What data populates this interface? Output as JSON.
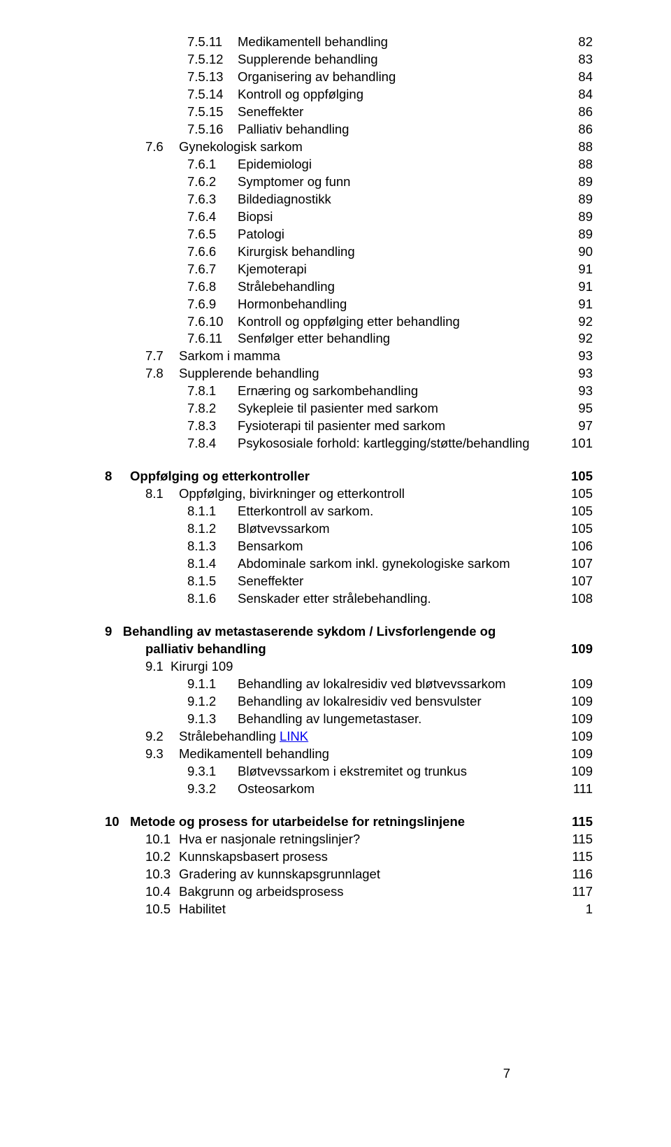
{
  "lines": [
    {
      "indent": "ind2",
      "bold": false,
      "num": "7.5.11",
      "text": "Medikamentell behandling",
      "page": "82"
    },
    {
      "indent": "ind2",
      "bold": false,
      "num": "7.5.12",
      "text": "Supplerende behandling",
      "page": "83"
    },
    {
      "indent": "ind2",
      "bold": false,
      "num": "7.5.13",
      "text": "Organisering av behandling",
      "page": "84"
    },
    {
      "indent": "ind2",
      "bold": false,
      "num": "7.5.14",
      "text": "Kontroll og oppfølging",
      "page": "84"
    },
    {
      "indent": "ind2",
      "bold": false,
      "num": "7.5.15",
      "text": "Seneffekter",
      "page": "86"
    },
    {
      "indent": "ind2",
      "bold": false,
      "num": "7.5.16",
      "text": "Palliativ behandling",
      "page": "86"
    },
    {
      "indent": "ind1",
      "bold": false,
      "num": "7.6",
      "text": "Gynekologisk sarkom",
      "page": "88"
    },
    {
      "indent": "ind2",
      "bold": false,
      "num": "7.6.1",
      "text": "Epidemiologi",
      "page": "88"
    },
    {
      "indent": "ind2",
      "bold": false,
      "num": "7.6.2",
      "text": "Symptomer og funn",
      "page": "89"
    },
    {
      "indent": "ind2",
      "bold": false,
      "num": "7.6.3",
      "text": "Bildediagnostikk",
      "page": "89"
    },
    {
      "indent": "ind2",
      "bold": false,
      "num": "7.6.4",
      "text": "Biopsi",
      "page": "89"
    },
    {
      "indent": "ind2",
      "bold": false,
      "num": "7.6.5",
      "text": "Patologi",
      "page": "89"
    },
    {
      "indent": "ind2",
      "bold": false,
      "num": "7.6.6",
      "text": "Kirurgisk behandling",
      "page": "90"
    },
    {
      "indent": "ind2",
      "bold": false,
      "num": "7.6.7",
      "text": "Kjemoterapi",
      "page": "91"
    },
    {
      "indent": "ind2",
      "bold": false,
      "num": "7.6.8",
      "text": "Strålebehandling",
      "page": "91"
    },
    {
      "indent": "ind2",
      "bold": false,
      "num": "7.6.9",
      "text": "Hormonbehandling",
      "page": "91"
    },
    {
      "indent": "ind2",
      "bold": false,
      "num": "7.6.10",
      "text": "Kontroll og oppfølging etter behandling",
      "page": "92"
    },
    {
      "indent": "ind2",
      "bold": false,
      "num": "7.6.11",
      "text": "Senfølger etter behandling",
      "page": "92"
    },
    {
      "indent": "ind1",
      "bold": false,
      "num": "7.7",
      "text": "Sarkom i mamma",
      "page": "93"
    },
    {
      "indent": "ind1",
      "bold": false,
      "num": "7.8",
      "text": "Supplerende behandling",
      "page": "93"
    },
    {
      "indent": "ind2",
      "bold": false,
      "num": "7.8.1",
      "text": "Ernæring og sarkombehandling",
      "page": "93"
    },
    {
      "indent": "ind2",
      "bold": false,
      "num": "7.8.2",
      "text": "Sykepleie til pasienter med sarkom",
      "page": "95"
    },
    {
      "indent": "ind2",
      "bold": false,
      "num": "7.8.3",
      "text": "Fysioterapi til pasienter med sarkom",
      "page": "97"
    },
    {
      "indent": "ind2",
      "bold": false,
      "num": "7.8.4",
      "text": "Psykososiale forhold: kartlegging/støtte/behandling",
      "page": "101"
    },
    {
      "indent": "",
      "bold": true,
      "num": "8",
      "text": "Oppfølging og etterkontroller",
      "page": "105",
      "gap": true
    },
    {
      "indent": "ind1",
      "bold": false,
      "num": "8.1",
      "text": "Oppfølging, bivirkninger og etterkontroll",
      "page": "105"
    },
    {
      "indent": "ind2",
      "bold": false,
      "num": "8.1.1",
      "text": "Etterkontroll av sarkom.",
      "page": "105"
    },
    {
      "indent": "ind2",
      "bold": false,
      "num": "8.1.2",
      "text": "Bløtvevssarkom",
      "page": "105"
    },
    {
      "indent": "ind2",
      "bold": false,
      "num": "8.1.3",
      "text": "Bensarkom",
      "page": "106"
    },
    {
      "indent": "ind2",
      "bold": false,
      "num": "8.1.4",
      "text": "Abdominale sarkom inkl. gynekologiske sarkom",
      "page": "107"
    },
    {
      "indent": "ind2",
      "bold": false,
      "num": "8.1.5",
      "text": "Seneffekter",
      "page": "107"
    },
    {
      "indent": "ind2",
      "bold": false,
      "num": "8.1.6",
      "text": "Senskader etter strålebehandling.",
      "page": "108"
    },
    {
      "indent": "",
      "bold": true,
      "num": "9",
      "text": "Behandling av metastaserende sykdom / Livsforlengende og palliativ behandling",
      "page": "109",
      "gap": true,
      "wrap": true
    },
    {
      "indent": "ind1",
      "bold": false,
      "num": "9.1",
      "text": "Kirurgi",
      "page": "109",
      "inline_page": true
    },
    {
      "indent": "ind2",
      "bold": false,
      "num": "9.1.1",
      "text": "Behandling av lokalresidiv ved bløtvevssarkom",
      "page": "109"
    },
    {
      "indent": "ind2",
      "bold": false,
      "num": "9.1.2",
      "text": "Behandling av lokalresidiv ved bensvulster",
      "page": "109"
    },
    {
      "indent": "ind2",
      "bold": false,
      "num": "9.1.3",
      "text": "Behandling av lungemetastaser.",
      "page": "109"
    },
    {
      "indent": "ind1",
      "bold": false,
      "num": "9.2",
      "text": "Strålebehandling  ",
      "link": "LINK",
      "page": "109"
    },
    {
      "indent": "ind1",
      "bold": false,
      "num": "9.3",
      "text": "Medikamentell behandling",
      "page": "109"
    },
    {
      "indent": "ind2",
      "bold": false,
      "num": "9.3.1",
      "text": "Bløtvevssarkom i ekstremitet og trunkus",
      "page": "109"
    },
    {
      "indent": "ind2",
      "bold": false,
      "num": "9.3.2",
      "text": "Osteosarkom",
      "page": "111"
    },
    {
      "indent": "",
      "bold": true,
      "num": "10",
      "text": "Metode og prosess for utarbeidelse for retningslinjene",
      "page": "115",
      "gap": true
    },
    {
      "indent": "ind1",
      "bold": false,
      "num": "10.1",
      "text": "Hva er nasjonale retningslinjer?",
      "page": "115"
    },
    {
      "indent": "ind1",
      "bold": false,
      "num": "10.2",
      "text": "Kunnskapsbasert prosess",
      "page": "115"
    },
    {
      "indent": "ind1",
      "bold": false,
      "num": "10.3",
      "text": "Gradering av kunnskapsgrunnlaget",
      "page": "116"
    },
    {
      "indent": "ind1",
      "bold": false,
      "num": "10.4",
      "text": "Bakgrunn og arbeidsprosess",
      "page": "117"
    },
    {
      "indent": "ind1",
      "bold": false,
      "num": "10.5",
      "text": "Habilitet",
      "page": "1"
    }
  ],
  "footer_page": "7"
}
